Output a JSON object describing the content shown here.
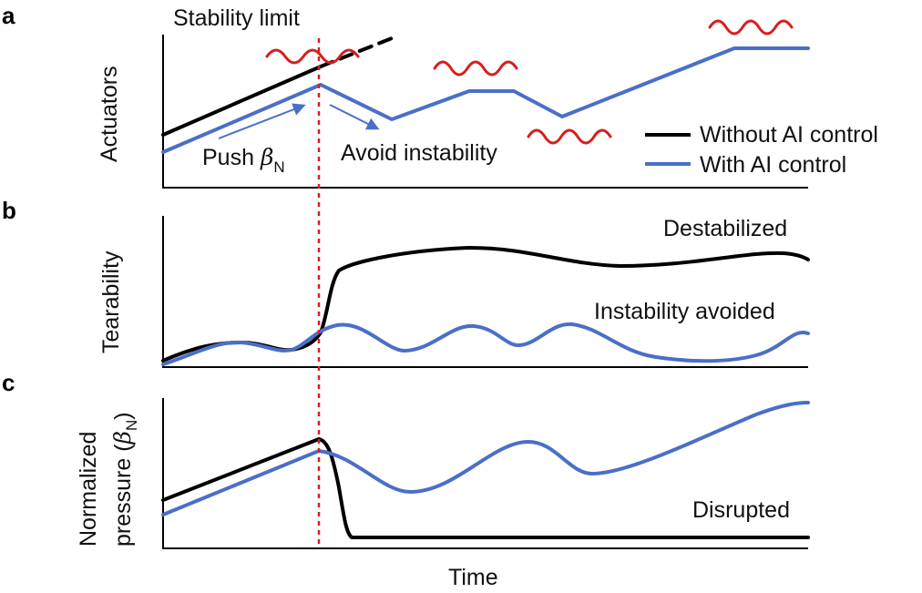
{
  "panels": {
    "a": {
      "letter": "a",
      "ylabel": "Actuators",
      "stability_limit": "Stability limit",
      "push_label": "Push ",
      "push_symbol": "β",
      "push_subscript": "N",
      "avoid_label": "Avoid instability"
    },
    "b": {
      "letter": "b",
      "ylabel": "Tearability",
      "destabilized": "Destabilized",
      "avoided": "Instability avoided"
    },
    "c": {
      "letter": "c",
      "ylabel_line1": "Normalized",
      "ylabel_line2_prefix": "pressure (",
      "ylabel_symbol": "β",
      "ylabel_subscript": "N",
      "ylabel_suffix": ")",
      "disrupted": "Disrupted"
    }
  },
  "legend": {
    "without": "Without AI control",
    "with": "With AI control"
  },
  "xlabel": "Time",
  "colors": {
    "without": "#000000",
    "with": "#4a6fc7",
    "instability": "#d81e1e"
  }
}
